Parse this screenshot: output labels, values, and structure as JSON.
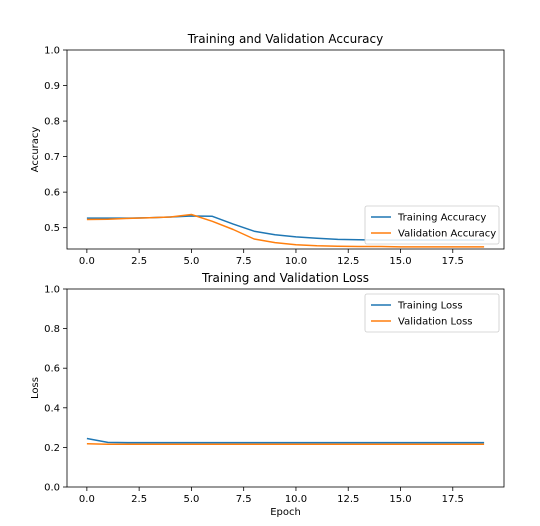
{
  "chart_data": [
    {
      "type": "line",
      "title": "Training and Validation Accuracy",
      "xlabel": "",
      "ylabel": "Accuracy",
      "x": [
        0,
        1,
        2,
        3,
        4,
        5,
        6,
        7,
        8,
        9,
        10,
        11,
        12,
        13,
        14,
        15,
        16,
        17,
        18,
        19
      ],
      "xticks": [
        "0.0",
        "2.5",
        "5.0",
        "7.5",
        "10.0",
        "12.5",
        "15.0",
        "17.5"
      ],
      "xtick_values": [
        0,
        2.5,
        5,
        7.5,
        10,
        12.5,
        15,
        17.5
      ],
      "yticks": [
        "0.5",
        "0.6",
        "0.7",
        "0.8",
        "0.9",
        "1.0"
      ],
      "ytick_values": [
        0.5,
        0.6,
        0.7,
        0.8,
        0.9,
        1.0
      ],
      "xlim": [
        -0.95,
        19.95
      ],
      "ylim": [
        0.44,
        1.0
      ],
      "legend_position": "lower right",
      "series": [
        {
          "name": "Training Accuracy",
          "color": "#1f77b4",
          "values": [
            0.527,
            0.527,
            0.527,
            0.528,
            0.53,
            0.533,
            0.532,
            0.51,
            0.49,
            0.48,
            0.474,
            0.47,
            0.467,
            0.466,
            0.465,
            0.465,
            0.465,
            0.465,
            0.465,
            0.465
          ]
        },
        {
          "name": "Validation Accuracy",
          "color": "#ff7f0e",
          "values": [
            0.523,
            0.524,
            0.526,
            0.528,
            0.53,
            0.537,
            0.518,
            0.495,
            0.468,
            0.458,
            0.452,
            0.449,
            0.448,
            0.447,
            0.447,
            0.446,
            0.446,
            0.446,
            0.446,
            0.446
          ]
        }
      ]
    },
    {
      "type": "line",
      "title": "Training and Validation Loss",
      "xlabel": "Epoch",
      "ylabel": "Loss",
      "x": [
        0,
        1,
        2,
        3,
        4,
        5,
        6,
        7,
        8,
        9,
        10,
        11,
        12,
        13,
        14,
        15,
        16,
        17,
        18,
        19
      ],
      "xticks": [
        "0.0",
        "2.5",
        "5.0",
        "7.5",
        "10.0",
        "12.5",
        "15.0",
        "17.5"
      ],
      "xtick_values": [
        0,
        2.5,
        5,
        7.5,
        10,
        12.5,
        15,
        17.5
      ],
      "yticks": [
        "0.0",
        "0.2",
        "0.4",
        "0.6",
        "0.8",
        "1.0"
      ],
      "ytick_values": [
        0,
        0.2,
        0.4,
        0.6,
        0.8,
        1.0
      ],
      "xlim": [
        -0.95,
        19.95
      ],
      "ylim": [
        0.0,
        1.0
      ],
      "legend_position": "upper right",
      "series": [
        {
          "name": "Training Loss",
          "color": "#1f77b4",
          "values": [
            0.245,
            0.225,
            0.224,
            0.224,
            0.224,
            0.224,
            0.224,
            0.224,
            0.224,
            0.224,
            0.224,
            0.224,
            0.224,
            0.224,
            0.224,
            0.224,
            0.224,
            0.224,
            0.224,
            0.224
          ]
        },
        {
          "name": "Validation Loss",
          "color": "#ff7f0e",
          "values": [
            0.218,
            0.216,
            0.216,
            0.216,
            0.216,
            0.216,
            0.216,
            0.216,
            0.216,
            0.216,
            0.216,
            0.216,
            0.216,
            0.216,
            0.216,
            0.216,
            0.216,
            0.216,
            0.216,
            0.216
          ]
        }
      ]
    }
  ]
}
